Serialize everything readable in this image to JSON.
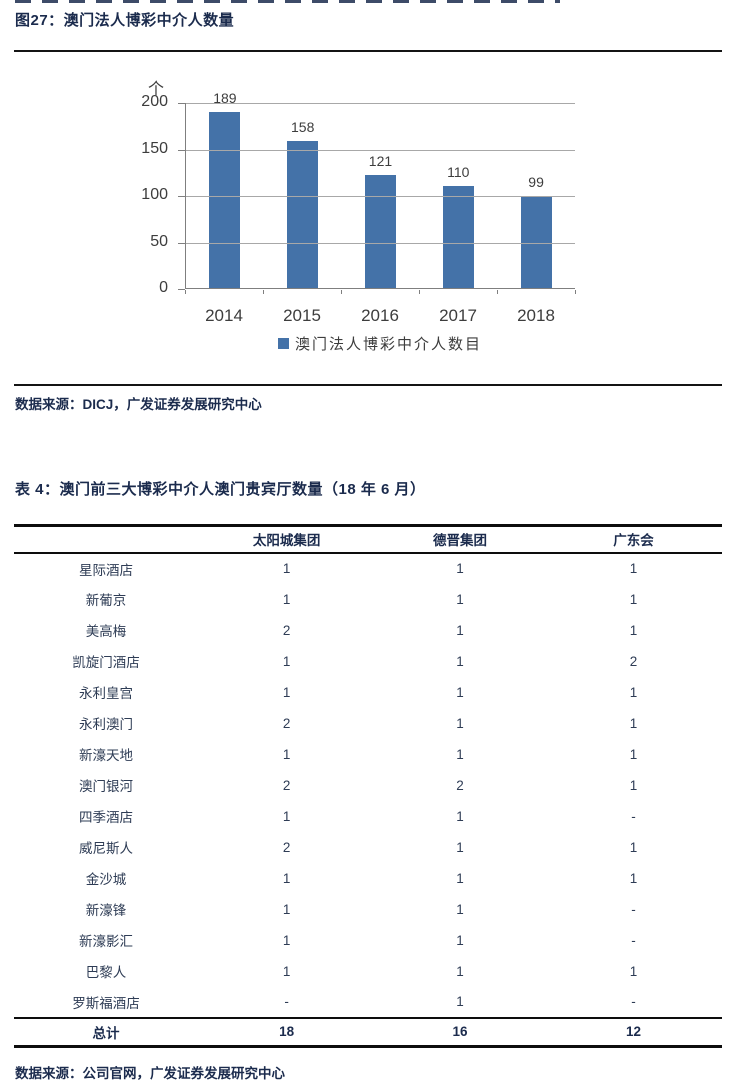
{
  "figure": {
    "title": "图27：澳门法人博彩中介人数量",
    "source": "数据来源：DICJ，广发证券发展研究中心"
  },
  "chart_data": {
    "type": "bar",
    "title": "澳门法人博彩中介人数量",
    "unit_label": "个",
    "categories": [
      "2014",
      "2015",
      "2016",
      "2017",
      "2018"
    ],
    "values": [
      189,
      158,
      121,
      110,
      99
    ],
    "series_name": "澳门法人博彩中介人数目",
    "y_ticks": [
      200,
      150,
      100,
      50,
      0
    ],
    "ylim": [
      0,
      200
    ],
    "xlabel": "",
    "ylabel": "个",
    "grid": true,
    "legend_position": "bottom",
    "bar_color": "#4472a8"
  },
  "table": {
    "title": "表 4：澳门前三大博彩中介人澳门贵宾厅数量（18 年 6 月）",
    "columns": [
      "",
      "太阳城集团",
      "德晋集团",
      "广东会"
    ],
    "rows": [
      [
        "星际酒店",
        "1",
        "1",
        "1"
      ],
      [
        "新葡京",
        "1",
        "1",
        "1"
      ],
      [
        "美高梅",
        "2",
        "1",
        "1"
      ],
      [
        "凯旋门酒店",
        "1",
        "1",
        "2"
      ],
      [
        "永利皇宫",
        "1",
        "1",
        "1"
      ],
      [
        "永利澳门",
        "2",
        "1",
        "1"
      ],
      [
        "新濠天地",
        "1",
        "1",
        "1"
      ],
      [
        "澳门银河",
        "2",
        "2",
        "1"
      ],
      [
        "四季酒店",
        "1",
        "1",
        "-"
      ],
      [
        "威尼斯人",
        "2",
        "1",
        "1"
      ],
      [
        "金沙城",
        "1",
        "1",
        "1"
      ],
      [
        "新濠锋",
        "1",
        "1",
        "-"
      ],
      [
        "新濠影汇",
        "1",
        "1",
        "-"
      ],
      [
        "巴黎人",
        "1",
        "1",
        "1"
      ],
      [
        "罗斯福酒店",
        "-",
        "1",
        "-"
      ]
    ],
    "total_row": [
      "总计",
      "18",
      "16",
      "12"
    ],
    "source": "数据来源：公司官网，广发证券发展研究中心"
  },
  "colors": {
    "accent_navy": "#1b2b4d",
    "bar_blue": "#4472a8",
    "gridline": "#a8a8a8",
    "axis": "#7f7f7f",
    "chart_text": "#3d3d3d",
    "table_text": "#2e3c55",
    "rule_black": "#141414"
  }
}
